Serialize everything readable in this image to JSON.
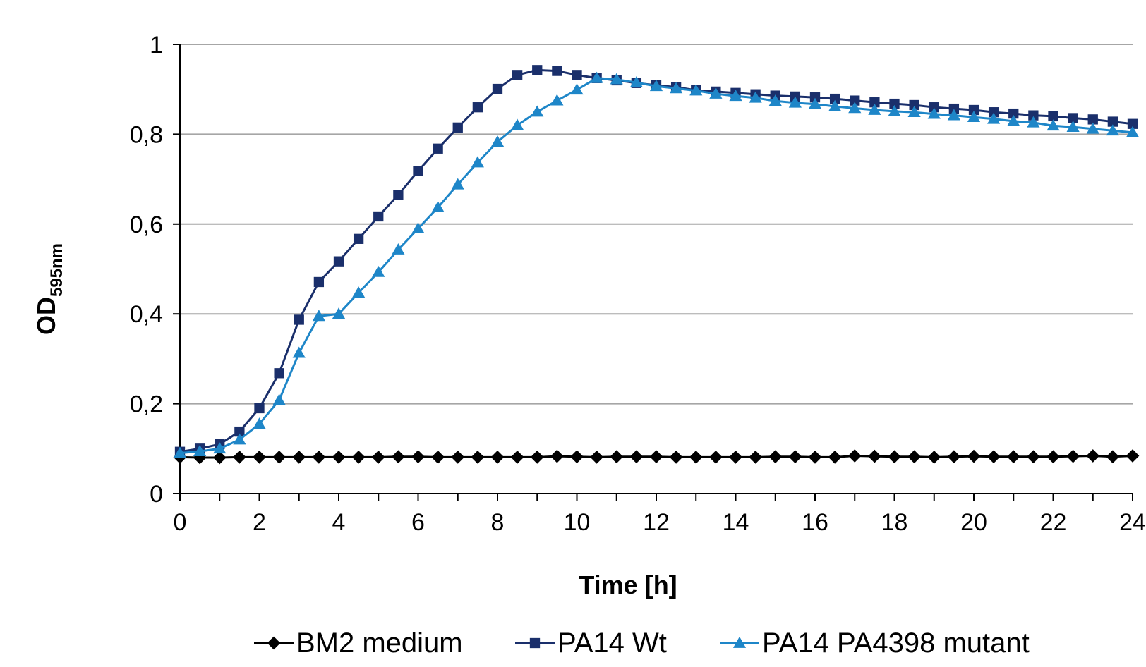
{
  "chart_data": {
    "type": "line",
    "title": "",
    "xlabel": "Time [h]",
    "ylabel": "OD",
    "ylabel_subscript": "595nm",
    "xlim": [
      0,
      24
    ],
    "ylim": [
      0,
      1
    ],
    "x_ticks": [
      "0",
      "2",
      "4",
      "6",
      "8",
      "10",
      "12",
      "14",
      "16",
      "18",
      "20",
      "22",
      "24"
    ],
    "y_ticks": [
      "0",
      "0,2",
      "0,4",
      "0,6",
      "0,8",
      "1"
    ],
    "grid": "horizontal",
    "legend_position": "bottom",
    "x": [
      0,
      0.5,
      1,
      1.5,
      2,
      2.5,
      3,
      3.5,
      4,
      4.5,
      5,
      5.5,
      6,
      6.5,
      7,
      7.5,
      8,
      8.5,
      9,
      9.5,
      10,
      10.5,
      11,
      11.5,
      12,
      12.5,
      13,
      13.5,
      14,
      14.5,
      15,
      15.5,
      16,
      16.5,
      17,
      17.5,
      18,
      18.5,
      19,
      19.5,
      20,
      20.5,
      21,
      21.5,
      22,
      22.5,
      23,
      23.5,
      24
    ],
    "series": [
      {
        "name": "BM2 medium",
        "color": "#000000",
        "marker": "diamond",
        "values": [
          0.081,
          0.08,
          0.08,
          0.081,
          0.081,
          0.081,
          0.081,
          0.081,
          0.081,
          0.081,
          0.081,
          0.082,
          0.082,
          0.081,
          0.081,
          0.081,
          0.081,
          0.081,
          0.081,
          0.083,
          0.082,
          0.081,
          0.082,
          0.082,
          0.082,
          0.081,
          0.081,
          0.081,
          0.081,
          0.081,
          0.082,
          0.082,
          0.081,
          0.081,
          0.084,
          0.083,
          0.082,
          0.082,
          0.081,
          0.082,
          0.083,
          0.082,
          0.082,
          0.082,
          0.082,
          0.083,
          0.084,
          0.082,
          0.084
        ]
      },
      {
        "name": "PA14 Wt",
        "color": "#1a2f6b",
        "marker": "square",
        "values": [
          0.093,
          0.1,
          0.11,
          0.138,
          0.19,
          0.268,
          0.387,
          0.471,
          0.517,
          0.567,
          0.617,
          0.665,
          0.718,
          0.768,
          0.815,
          0.86,
          0.901,
          0.932,
          0.943,
          0.941,
          0.932,
          0.925,
          0.92,
          0.914,
          0.909,
          0.905,
          0.898,
          0.895,
          0.892,
          0.889,
          0.886,
          0.884,
          0.882,
          0.879,
          0.875,
          0.871,
          0.868,
          0.865,
          0.86,
          0.857,
          0.854,
          0.849,
          0.846,
          0.842,
          0.84,
          0.836,
          0.833,
          0.828,
          0.823
        ]
      },
      {
        "name": "PA14 PA4398 mutant",
        "color": "#1e86c8",
        "marker": "triangle",
        "values": [
          0.09,
          0.094,
          0.1,
          0.12,
          0.155,
          0.208,
          0.313,
          0.395,
          0.4,
          0.447,
          0.493,
          0.543,
          0.59,
          0.637,
          0.688,
          0.737,
          0.783,
          0.82,
          0.85,
          0.875,
          0.899,
          0.925,
          0.922,
          0.915,
          0.907,
          0.902,
          0.897,
          0.89,
          0.885,
          0.881,
          0.874,
          0.87,
          0.867,
          0.862,
          0.858,
          0.854,
          0.851,
          0.849,
          0.845,
          0.842,
          0.838,
          0.834,
          0.829,
          0.826,
          0.819,
          0.816,
          0.812,
          0.808,
          0.804
        ]
      }
    ]
  }
}
